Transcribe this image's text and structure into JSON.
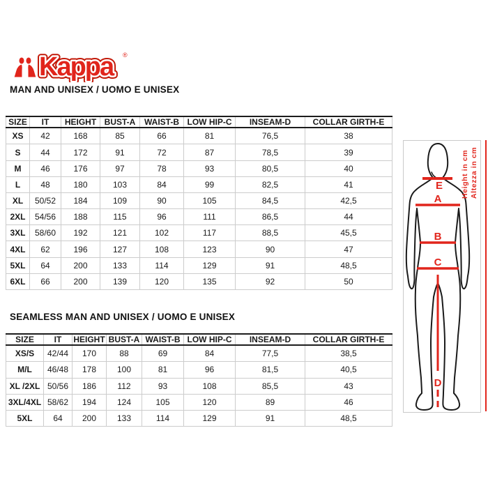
{
  "logo": {
    "brand": "Kappa",
    "registered": "®"
  },
  "colors": {
    "brand_red": "#e1251c",
    "table_border": "#cccccc",
    "table_border_dark": "#1c1c1c",
    "text": "#1a1a1a"
  },
  "sections": [
    {
      "heading": "MAN AND UNISEX / UOMO E UNISEX",
      "columns": [
        "SIZE",
        "IT",
        "HEIGHT",
        "BUST-A",
        "WAIST-B",
        "LOW HIP-C",
        "INSEAM-D",
        "COLLAR GIRTH-E"
      ],
      "rows": [
        [
          "XS",
          "42",
          "168",
          "85",
          "66",
          "81",
          "76,5",
          "38"
        ],
        [
          "S",
          "44",
          "172",
          "91",
          "72",
          "87",
          "78,5",
          "39"
        ],
        [
          "M",
          "46",
          "176",
          "97",
          "78",
          "93",
          "80,5",
          "40"
        ],
        [
          "L",
          "48",
          "180",
          "103",
          "84",
          "99",
          "82,5",
          "41"
        ],
        [
          "XL",
          "50/52",
          "184",
          "109",
          "90",
          "105",
          "84,5",
          "42,5"
        ],
        [
          "2XL",
          "54/56",
          "188",
          "115",
          "96",
          "111",
          "86,5",
          "44"
        ],
        [
          "3XL",
          "58/60",
          "192",
          "121",
          "102",
          "117",
          "88,5",
          "45,5"
        ],
        [
          "4XL",
          "62",
          "196",
          "127",
          "108",
          "123",
          "90",
          "47"
        ],
        [
          "5XL",
          "64",
          "200",
          "133",
          "114",
          "129",
          "91",
          "48,5"
        ],
        [
          "6XL",
          "66",
          "200",
          "139",
          "120",
          "135",
          "92",
          "50"
        ]
      ]
    },
    {
      "heading": "SEAMLESS MAN AND UNISEX / UOMO E UNISEX",
      "columns": [
        "SIZE",
        "IT",
        "HEIGHT",
        "BUST-A",
        "WAIST-B",
        "LOW HIP-C",
        "INSEAM-D",
        "COLLAR GIRTH-E"
      ],
      "rows": [
        [
          "XS/S",
          "42/44",
          "170",
          "88",
          "69",
          "84",
          "77,5",
          "38,5"
        ],
        [
          "M/L",
          "46/48",
          "178",
          "100",
          "81",
          "96",
          "81,5",
          "40,5"
        ],
        [
          "XL /2XL",
          "50/56",
          "186",
          "112",
          "93",
          "108",
          "85,5",
          "43"
        ],
        [
          "3XL/4XL",
          "58/62",
          "194",
          "124",
          "105",
          "120",
          "89",
          "46"
        ],
        [
          "5XL",
          "64",
          "200",
          "133",
          "114",
          "129",
          "91",
          "48,5"
        ]
      ]
    }
  ],
  "diagram": {
    "labels": {
      "e": "E",
      "a": "A",
      "b": "B",
      "c": "C",
      "d": "D"
    },
    "height_label_en": "Height in cm",
    "height_label_it": "Altezza in cm"
  }
}
